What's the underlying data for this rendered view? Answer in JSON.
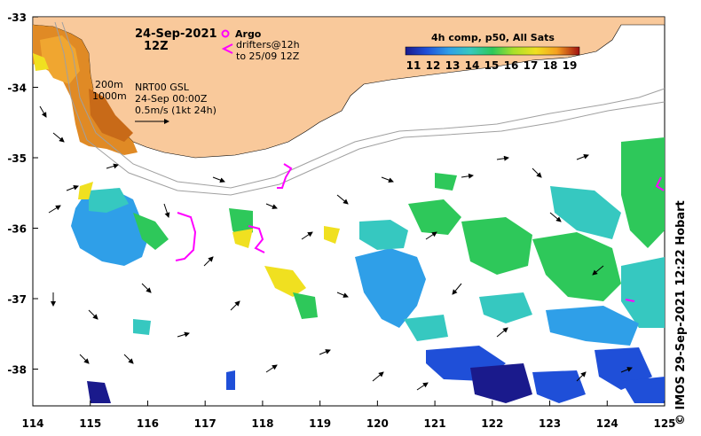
{
  "title": {
    "date": "24-Sep-2021",
    "time": "12Z"
  },
  "legend": {
    "argo_label": "Argo",
    "drifters_line1": "drifters@12h",
    "drifters_line2": "to 25/09 12Z",
    "depth_200": "200m",
    "depth_1000": "1000m",
    "product": "NRT00 GSL",
    "product_time": "24-Sep 00:00Z",
    "scale_arrow": "0.5m/s (1kt 24h)"
  },
  "colorbar": {
    "title": "4h comp, p50, All Sats",
    "ticks": [
      "11",
      "12",
      "13",
      "14",
      "15",
      "16",
      "17",
      "18",
      "19"
    ],
    "colors": [
      "#1a1a8c",
      "#1f4fd8",
      "#2f9fe8",
      "#36c8c0",
      "#2ec85a",
      "#a8e02a",
      "#f0e020",
      "#f5a020",
      "#e05010",
      "#a01010"
    ]
  },
  "axes": {
    "x_ticks": [
      "114",
      "115",
      "116",
      "117",
      "118",
      "119",
      "120",
      "121",
      "122",
      "123",
      "124",
      "125"
    ],
    "y_ticks": [
      "-33",
      "-34",
      "-35",
      "-36",
      "-37",
      "-38"
    ]
  },
  "credit": "© IMOS 29-Sep-2021 12:22 Hobart",
  "colors": {
    "land": "#f9c99b",
    "argo": "#ff00ff",
    "drifter": "#ff00ff",
    "isobath": "#a0a0a0"
  }
}
